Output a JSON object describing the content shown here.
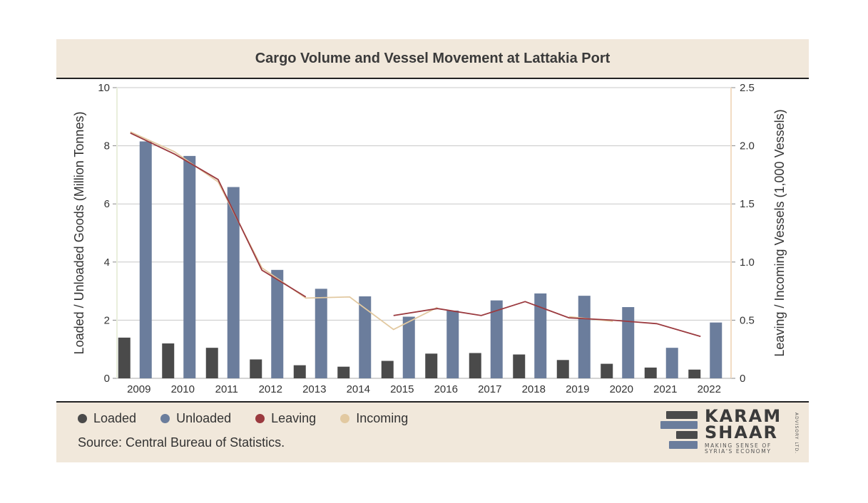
{
  "title": "Cargo Volume and Vessel Movement at Lattakia Port",
  "legend": {
    "items": [
      {
        "label": "Loaded",
        "color": "#4a4a4a"
      },
      {
        "label": "Unloaded",
        "color": "#6b7d9c"
      },
      {
        "label": "Leaving",
        "color": "#9b3a3f"
      },
      {
        "label": "Incoming",
        "color": "#e2c9a1"
      }
    ]
  },
  "source": "Source: Central Bureau of Statistics.",
  "logo": {
    "line1": "KARAM",
    "line2": "SHAAR",
    "tagline1": "MAKING SENSE OF",
    "tagline2": "SYRIA'S ECONOMY",
    "vertical": "ADVISORY LTD."
  },
  "chart_data": {
    "type": "bar",
    "categories": [
      "2009",
      "2010",
      "2011",
      "2012",
      "2013",
      "2014",
      "2015",
      "2016",
      "2017",
      "2018",
      "2019",
      "2020",
      "2021",
      "2022"
    ],
    "ylabel": "Loaded / Unloaded Goods (Million Tonnes)",
    "y2label": "Leaving / Incoming Vessels (1,000 Vessels)",
    "ylim": [
      0,
      10
    ],
    "y2lim": [
      0,
      2.5
    ],
    "yticks": [
      "0",
      "2",
      "4",
      "6",
      "8",
      "10"
    ],
    "y2ticks": [
      "0",
      "0.5",
      "1.0",
      "1.5",
      "2.0",
      "2.5"
    ],
    "grid": true,
    "series": [
      {
        "name": "Loaded",
        "axis": "left",
        "kind": "bar",
        "color": "#4a4a4a",
        "values": [
          1.4,
          1.2,
          1.05,
          0.65,
          0.45,
          0.4,
          0.6,
          0.85,
          0.87,
          0.82,
          0.63,
          0.5,
          0.37,
          0.3
        ]
      },
      {
        "name": "Unloaded",
        "axis": "left",
        "kind": "bar",
        "color": "#6b7d9c",
        "values": [
          8.15,
          7.65,
          6.58,
          3.73,
          3.08,
          2.82,
          2.12,
          2.33,
          2.68,
          2.92,
          2.84,
          2.45,
          1.05,
          1.92
        ]
      },
      {
        "name": "Leaving",
        "axis": "right",
        "kind": "line",
        "color": "#9b3a3f",
        "values": [
          2.11,
          1.93,
          1.71,
          0.93,
          0.7,
          null,
          0.54,
          0.6,
          0.54,
          0.66,
          0.52,
          0.5,
          0.47,
          0.36
        ]
      },
      {
        "name": "Incoming",
        "axis": "right",
        "kind": "line",
        "color": "#e2c9a1",
        "values": [
          2.12,
          1.95,
          1.69,
          0.95,
          0.69,
          0.7,
          0.42,
          0.61,
          null,
          null,
          0.53,
          0.49,
          null,
          null
        ]
      }
    ]
  }
}
